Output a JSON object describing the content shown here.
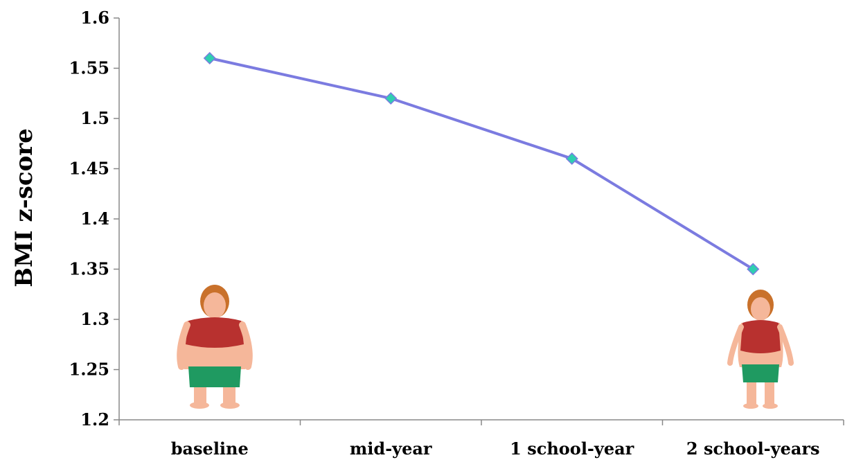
{
  "chart_data": {
    "type": "line",
    "title": "",
    "xlabel": "",
    "ylabel": "BMI z-score",
    "categories": [
      "baseline",
      "mid-year",
      "1 school-year",
      "2 school-years"
    ],
    "series": [
      {
        "values": [
          1.56,
          1.52,
          1.46,
          1.35
        ]
      }
    ],
    "ylim": [
      1.2,
      1.6
    ],
    "yticks": [
      "1.6",
      "1.55",
      "1.5",
      "1.45",
      "1.4",
      "1.35",
      "1.3",
      "1.25",
      "1.2"
    ],
    "grid": false,
    "colors": {
      "line": "#7b7be0",
      "marker": "#2fcfb0",
      "axis": "#888888"
    },
    "illustrations": [
      "overweight-girl-before",
      "slimmer-girl-after"
    ]
  }
}
